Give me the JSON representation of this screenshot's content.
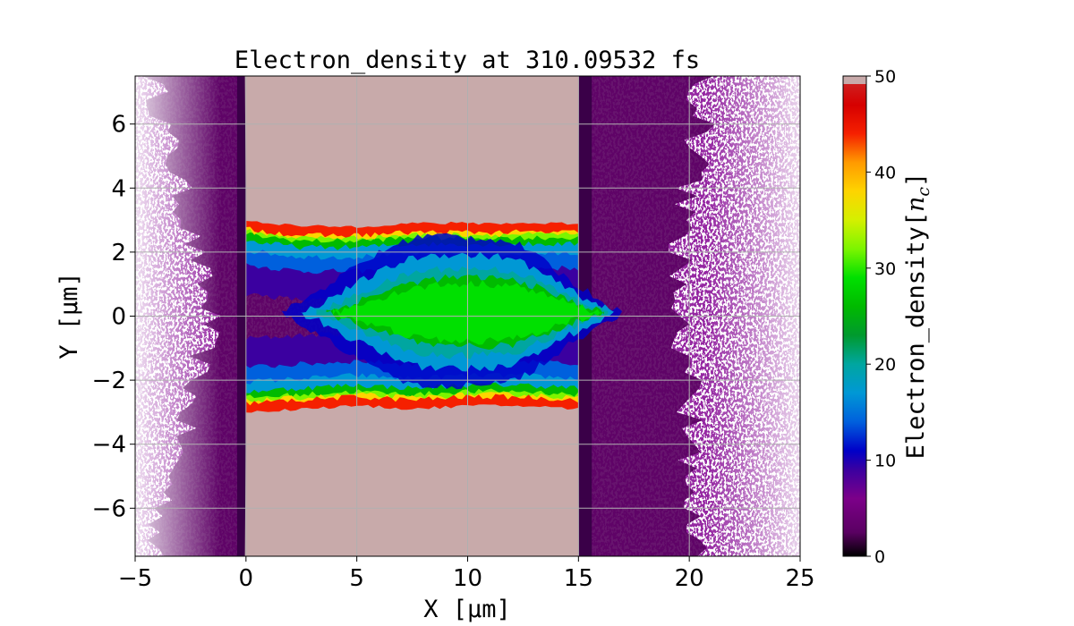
{
  "chart_data": {
    "type": "heatmap",
    "title": "Electron_density at 310.09532 fs",
    "xlabel": "X [μm]",
    "ylabel": "Y [μm]",
    "xlim": [
      -5,
      25
    ],
    "ylim": [
      -7.5,
      7.5
    ],
    "x_ticks": [
      -5,
      0,
      5,
      10,
      15,
      20,
      25
    ],
    "y_ticks": [
      -6,
      -4,
      -2,
      0,
      2,
      4,
      6
    ],
    "x_tick_labels": [
      "−5",
      "0",
      "5",
      "10",
      "15",
      "20",
      "25"
    ],
    "y_tick_labels": [
      "−6",
      "−4",
      "−2",
      "0",
      "2",
      "4",
      "6"
    ],
    "grid": true,
    "colorbar": {
      "label": "Electron_density[n_c]",
      "label_main": "Electron_density[",
      "label_var": "n",
      "label_sub": "c",
      "label_close": "]",
      "range": [
        0,
        50
      ],
      "ticks": [
        0,
        10,
        20,
        30,
        40,
        50
      ],
      "tick_labels": [
        "0",
        "10",
        "20",
        "30",
        "40",
        "50"
      ],
      "colormap": "nipy_spectral",
      "overflow_color": "#c8aaaa"
    },
    "regions": [
      {
        "name": "upper-target-overflow",
        "x": [
          0,
          15
        ],
        "y": [
          2.9,
          7.5
        ],
        "density": ">50"
      },
      {
        "name": "lower-target-overflow",
        "x": [
          0,
          15
        ],
        "y": [
          -7.5,
          -2.9
        ],
        "density": ">50"
      },
      {
        "name": "channel-core",
        "x": [
          4,
          16
        ],
        "y": [
          -0.8,
          1.0
        ],
        "density": 28
      },
      {
        "name": "channel-body",
        "x": [
          0,
          15
        ],
        "y": [
          -2.6,
          2.6
        ],
        "density": 10
      },
      {
        "name": "expanded-plasma",
        "x": [
          -5,
          25
        ],
        "y": [
          -7.5,
          7.5
        ],
        "density": 4
      }
    ],
    "channel_profile": [
      {
        "x": 0,
        "upper_edge": 3.0,
        "lower_edge": -3.0,
        "core_density": 8
      },
      {
        "x": 2.5,
        "upper_edge": 2.8,
        "lower_edge": -2.9,
        "core_density": 14
      },
      {
        "x": 5,
        "upper_edge": 2.8,
        "lower_edge": -2.8,
        "core_density": 22
      },
      {
        "x": 7.5,
        "upper_edge": 2.9,
        "lower_edge": -2.9,
        "core_density": 27
      },
      {
        "x": 10,
        "upper_edge": 2.9,
        "lower_edge": -2.8,
        "core_density": 24
      },
      {
        "x": 12.5,
        "upper_edge": 2.9,
        "lower_edge": -2.8,
        "core_density": 30
      },
      {
        "x": 15,
        "upper_edge": 2.9,
        "lower_edge": -2.9,
        "core_density": 18
      }
    ]
  }
}
